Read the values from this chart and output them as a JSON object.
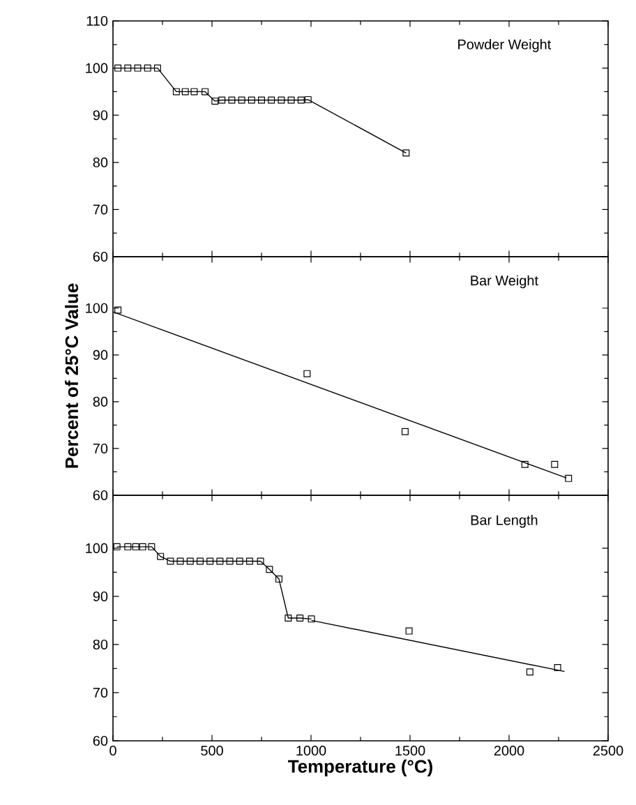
{
  "chart_data": [
    {
      "type": "line",
      "title": "Powder Weight",
      "xlim": [
        0,
        2500
      ],
      "xticks": [
        0,
        500,
        1000,
        1500,
        2000,
        2500
      ],
      "ylim": [
        60,
        110
      ],
      "yticks": [
        60,
        70,
        80,
        90,
        100,
        110
      ],
      "tick_labels": "y",
      "marker": "square",
      "series": [
        {
          "color": "#000000",
          "x": [
            25,
            75,
            125,
            175,
            225,
            320,
            365,
            410,
            465,
            515,
            550,
            600,
            650,
            700,
            750,
            800,
            850,
            900,
            950,
            985,
            1480
          ],
          "values": [
            100,
            100,
            100,
            100,
            100,
            95,
            95,
            95,
            95,
            93,
            93.2,
            93.2,
            93.2,
            93.2,
            93.2,
            93.2,
            93.2,
            93.2,
            93.2,
            93.3,
            82
          ]
        }
      ]
    },
    {
      "type": "line",
      "title": "Bar Weight",
      "ylabel": "Percent of 25°C Value",
      "xlim": [
        0,
        2500
      ],
      "xticks": [
        0,
        500,
        1000,
        1500,
        2000,
        2500
      ],
      "ylim": [
        60,
        111
      ],
      "yticks": [
        60,
        70,
        80,
        90,
        100
      ],
      "tick_labels": "y",
      "series": [
        {
          "type": "scatter",
          "marker": "square",
          "color": "#000000",
          "x": [
            25,
            980,
            1475,
            2080,
            2230,
            2300
          ],
          "values": [
            99.6,
            86,
            73.6,
            66.6,
            66.6,
            63.6
          ]
        },
        {
          "type": "line",
          "marker": "none",
          "color": "#000000",
          "x": [
            0,
            2290
          ],
          "values": [
            99.2,
            63.7
          ]
        }
      ]
    },
    {
      "type": "line",
      "title": "Bar Length",
      "xlabel": "Temperature (°C)",
      "xlim": [
        0,
        2500
      ],
      "xticks": [
        0,
        500,
        1000,
        1500,
        2000,
        2500
      ],
      "ylim": [
        60,
        111
      ],
      "yticks": [
        60,
        70,
        80,
        90,
        100
      ],
      "series": [
        {
          "type": "line",
          "marker": "square",
          "color": "#000000",
          "x": [
            20,
            75,
            115,
            150,
            195,
            240,
            290,
            340,
            390,
            440,
            490,
            540,
            590,
            640,
            690,
            745,
            790,
            838,
            885,
            944,
            1002
          ],
          "values": [
            100.3,
            100.3,
            100.3,
            100.3,
            100.3,
            98.3,
            97.3,
            97.3,
            97.3,
            97.3,
            97.3,
            97.3,
            97.3,
            97.3,
            97.3,
            97.3,
            95.6,
            93.6,
            85.5,
            85.5,
            85.3
          ]
        },
        {
          "type": "scatter",
          "marker": "square",
          "color": "#000000",
          "x": [
            1495,
            2105,
            2245
          ],
          "values": [
            82.8,
            74.3,
            75.2
          ]
        },
        {
          "type": "line",
          "marker": "none",
          "color": "#000000",
          "x": [
            1002,
            2280
          ],
          "values": [
            85,
            74.4
          ]
        }
      ]
    }
  ]
}
